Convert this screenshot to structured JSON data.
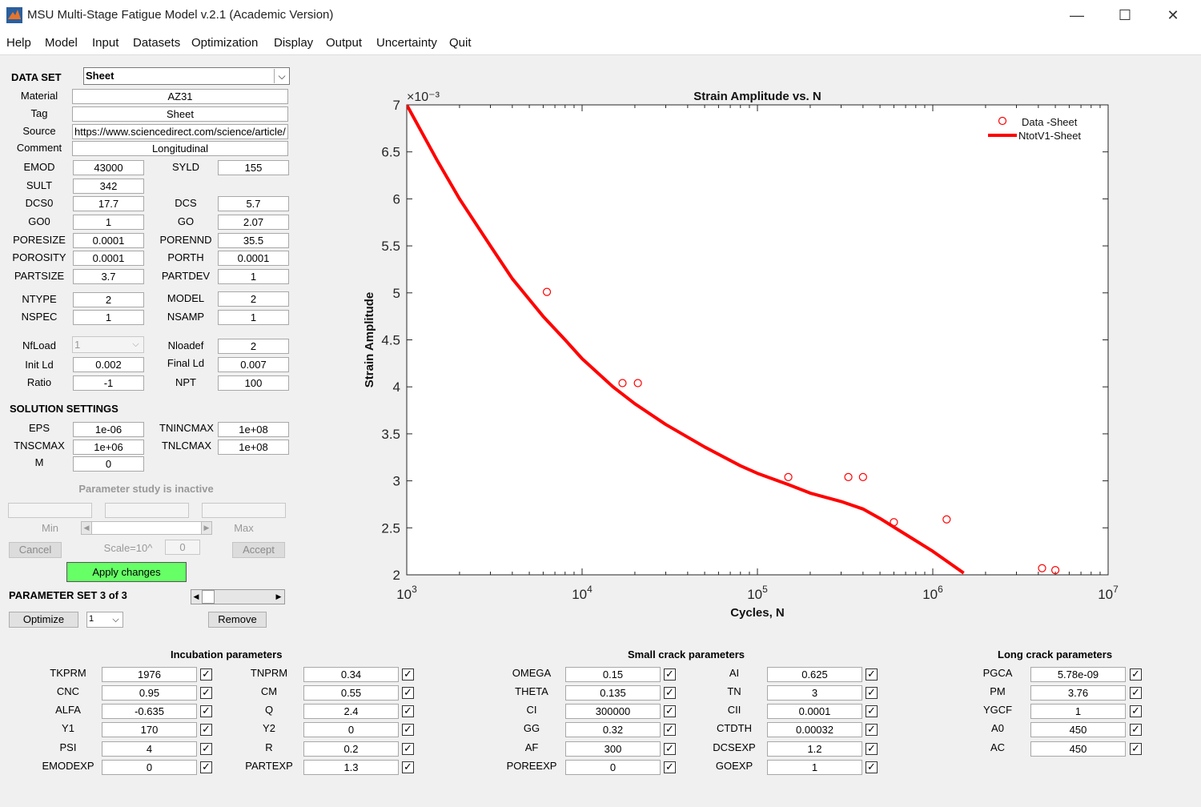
{
  "window": {
    "title": "MSU Multi-Stage Fatigue Model v.2.1 (Academic Version)"
  },
  "menu": [
    "Help",
    "Model",
    "Input",
    "Datasets",
    "Optimization",
    "Display",
    "Output",
    "Uncertainty",
    "Quit"
  ],
  "dataset": {
    "label": "DATA SET",
    "selected": "Sheet",
    "material_label": "Material",
    "material": "AZ31",
    "tag_label": "Tag",
    "tag": "Sheet",
    "source_label": "Source",
    "source": "https://www.sciencedirect.com/science/article/",
    "comment_label": "Comment",
    "comment": "Longitudinal"
  },
  "props": {
    "emod_l": "EMOD",
    "emod": "43000",
    "syld_l": "SYLD",
    "syld": "155",
    "sult_l": "SULT",
    "sult": "342",
    "dcs0_l": "DCS0",
    "dcs0": "17.7",
    "dcs_l": "DCS",
    "dcs": "5.7",
    "go0_l": "GO0",
    "go0": "1",
    "go_l": "GO",
    "go": "2.07",
    "poresize_l": "PORESIZE",
    "poresize": "0.0001",
    "porennd_l": "PORENND",
    "porennd": "35.5",
    "porosity_l": "POROSITY",
    "porosity": "0.0001",
    "porth_l": "PORTH",
    "porth": "0.0001",
    "partsize_l": "PARTSIZE",
    "partsize": "3.7",
    "partdev_l": "PARTDEV",
    "partdev": "1",
    "ntype_l": "NTYPE",
    "ntype": "2",
    "model_l": "MODEL",
    "model": "2",
    "nspec_l": "NSPEC",
    "nspec": "1",
    "nsamp_l": "NSAMP",
    "nsamp": "1",
    "nfload_l": "NfLoad",
    "nfload": "1",
    "nloadef_l": "Nloadef",
    "nloadef": "2",
    "initld_l": "Init Ld",
    "initld": "0.002",
    "finalld_l": "Final Ld",
    "finalld": "0.007",
    "ratio_l": "Ratio",
    "ratio": "-1",
    "npt_l": "NPT",
    "npt": "100"
  },
  "solution": {
    "label": "SOLUTION SETTINGS",
    "eps_l": "EPS",
    "eps": "1e-06",
    "tnincmax_l": "TNINCMAX",
    "tnincmax": "1e+08",
    "tnscmax_l": "TNSCMAX",
    "tnscmax": "1e+06",
    "tnlcmax_l": "TNLCMAX",
    "tnlcmax": "1e+08",
    "m_l": "M",
    "m": "0"
  },
  "param_study": {
    "status": "Parameter study is inactive",
    "min_l": "Min",
    "max_l": "Max",
    "cancel": "Cancel",
    "scale_l": "Scale=10^",
    "scale": "0",
    "accept": "Accept",
    "apply": "Apply changes",
    "apply_color": "#66ff66"
  },
  "param_set": {
    "label": "PARAMETER SET 3 of 3",
    "optimize": "Optimize",
    "opt_value": "1",
    "remove": "Remove"
  },
  "chart_data": {
    "type": "line",
    "title": "Strain Amplitude vs. N",
    "xlabel": "Cycles, N",
    "ylabel": "Strain Amplitude",
    "xscale": "log",
    "xlim": [
      1000,
      10000000
    ],
    "ylim": [
      0.002,
      0.007
    ],
    "y_multiplier": "×10⁻³",
    "x_ticks": [
      {
        "base": "10",
        "exp": "3"
      },
      {
        "base": "10",
        "exp": "4"
      },
      {
        "base": "10",
        "exp": "5"
      },
      {
        "base": "10",
        "exp": "6"
      },
      {
        "base": "10",
        "exp": "7"
      }
    ],
    "y_ticks": [
      "2",
      "2.5",
      "3",
      "3.5",
      "4",
      "4.5",
      "5",
      "5.5",
      "6",
      "6.5",
      "7"
    ],
    "legend_position": "top-right",
    "series": [
      {
        "name": "Data -Sheet",
        "kind": "scatter",
        "color": "#ff0000",
        "x": [
          6300,
          17000,
          20800,
          150000,
          330000,
          400000,
          600000,
          1200000,
          4200000,
          5000000
        ],
        "y": [
          0.00501,
          0.00404,
          0.00404,
          0.00304,
          0.00304,
          0.00304,
          0.00256,
          0.00259,
          0.00207,
          0.00205
        ]
      },
      {
        "name": "NtotV1-Sheet",
        "kind": "line",
        "color": "#ff0000",
        "x": [
          1000,
          1500,
          2000,
          3000,
          4000,
          6000,
          8000,
          10000,
          15000,
          20000,
          30000,
          50000,
          80000,
          100000,
          150000,
          200000,
          300000,
          400000,
          500000,
          700000,
          1000000,
          1500000
        ],
        "y": [
          0.007,
          0.0064,
          0.006,
          0.0055,
          0.00515,
          0.00475,
          0.0045,
          0.0043,
          0.004,
          0.00382,
          0.0036,
          0.00336,
          0.00316,
          0.00308,
          0.00296,
          0.00287,
          0.00278,
          0.0027,
          0.0026,
          0.00243,
          0.00225,
          0.00202
        ]
      }
    ]
  },
  "incubation": {
    "title": "Incubation parameters",
    "left": [
      {
        "l": "TKPRM",
        "v": "1976"
      },
      {
        "l": "CNC",
        "v": "0.95"
      },
      {
        "l": "ALFA",
        "v": "-0.635"
      },
      {
        "l": "Y1",
        "v": "170"
      },
      {
        "l": "PSI",
        "v": "4"
      },
      {
        "l": "EMODEXP",
        "v": "0"
      }
    ],
    "right": [
      {
        "l": "TNPRM",
        "v": "0.34"
      },
      {
        "l": "CM",
        "v": "0.55"
      },
      {
        "l": "Q",
        "v": "2.4"
      },
      {
        "l": "Y2",
        "v": "0"
      },
      {
        "l": "R",
        "v": "0.2"
      },
      {
        "l": "PARTEXP",
        "v": "1.3"
      }
    ]
  },
  "small_crack": {
    "title": "Small crack parameters",
    "left": [
      {
        "l": "OMEGA",
        "v": "0.15"
      },
      {
        "l": "THETA",
        "v": "0.135"
      },
      {
        "l": "CI",
        "v": "300000"
      },
      {
        "l": "GG",
        "v": "0.32"
      },
      {
        "l": "AF",
        "v": "300"
      },
      {
        "l": "POREEXP",
        "v": "0"
      }
    ],
    "right": [
      {
        "l": "AI",
        "v": "0.625"
      },
      {
        "l": "TN",
        "v": "3"
      },
      {
        "l": "CII",
        "v": "0.0001"
      },
      {
        "l": "CTDTH",
        "v": "0.00032"
      },
      {
        "l": "DCSEXP",
        "v": "1.2"
      },
      {
        "l": "GOEXP",
        "v": "1"
      }
    ]
  },
  "long_crack": {
    "title": "Long crack parameters",
    "items": [
      {
        "l": "PGCA",
        "v": "5.78e-09"
      },
      {
        "l": "PM",
        "v": "3.76"
      },
      {
        "l": "YGCF",
        "v": "1"
      },
      {
        "l": "A0",
        "v": "450"
      },
      {
        "l": "AC",
        "v": "450"
      }
    ]
  },
  "colors": {
    "accent": "#ff0000",
    "apply_button": "#66ff66"
  }
}
